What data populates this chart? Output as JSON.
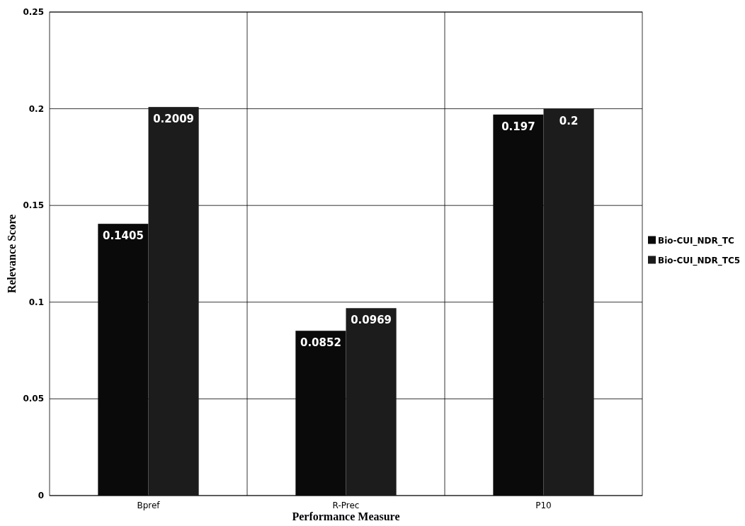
{
  "chart_data": {
    "type": "bar",
    "xlabel": "Performance Measure",
    "ylabel": "Relevance Score",
    "categories": [
      "Bpref",
      "R-Prec",
      "P10"
    ],
    "series": [
      {
        "name": "Bio-CUI_NDR_TC",
        "color": "#0a0a0a",
        "values": [
          0.1405,
          0.0852,
          0.197
        ]
      },
      {
        "name": "Bio-CUI_NDR_TC5",
        "color": "#1c1c1c",
        "values": [
          0.2009,
          0.0969,
          0.2
        ]
      }
    ],
    "ylim": [
      0,
      0.25
    ],
    "yticks": [
      0,
      0.05,
      0.1,
      0.15,
      0.2,
      0.25
    ],
    "grid": true,
    "legend": "right",
    "data_labels": true
  }
}
